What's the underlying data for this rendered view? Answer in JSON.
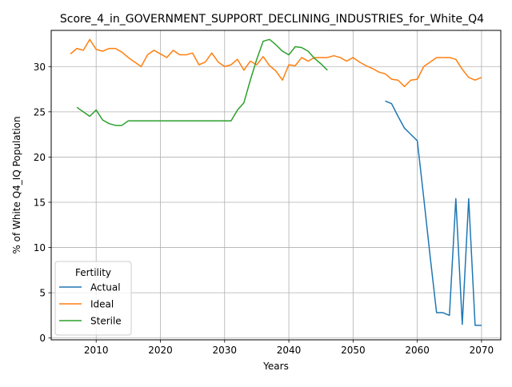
{
  "chart_data": {
    "type": "line",
    "title": "Score_4_in_GOVERNMENT_SUPPORT_DECLINING_INDUSTRIES_for_White_Q4",
    "xlabel": "Years",
    "ylabel": "% of White Q4_IQ Population",
    "xlim": [
      2003,
      2073
    ],
    "ylim": [
      -0.2,
      34.0
    ],
    "xticks": [
      2010,
      2020,
      2030,
      2040,
      2050,
      2060,
      2070
    ],
    "yticks": [
      0,
      5,
      10,
      15,
      20,
      25,
      30
    ],
    "grid": true,
    "legend": {
      "title": "Fertility",
      "placement": "lower-left"
    },
    "series": [
      {
        "name": "Actual",
        "color": "#1f77b4",
        "x": [
          2055,
          2056,
          2057,
          2058,
          2059,
          2060,
          2061,
          2062,
          2063,
          2064,
          2065,
          2066,
          2067,
          2068,
          2069,
          2070
        ],
        "y": [
          26.2,
          25.9,
          24.5,
          23.2,
          22.5,
          21.8,
          15.5,
          9.0,
          2.8,
          2.8,
          2.5,
          15.4,
          1.5,
          15.4,
          1.4,
          1.4
        ]
      },
      {
        "name": "Ideal",
        "color": "#ff7f0e",
        "x": [
          2006,
          2007,
          2008,
          2009,
          2010,
          2011,
          2012,
          2013,
          2014,
          2015,
          2016,
          2017,
          2018,
          2019,
          2020,
          2021,
          2022,
          2023,
          2024,
          2025,
          2026,
          2027,
          2028,
          2029,
          2030,
          2031,
          2032,
          2033,
          2034,
          2035,
          2036,
          2037,
          2038,
          2039,
          2040,
          2041,
          2042,
          2043,
          2044,
          2045,
          2046,
          2047,
          2048,
          2049,
          2050,
          2051,
          2052,
          2053,
          2054,
          2055,
          2056,
          2057,
          2058,
          2059,
          2060,
          2061,
          2062,
          2063,
          2064,
          2065,
          2066,
          2067,
          2068,
          2069,
          2070
        ],
        "y": [
          31.4,
          32.0,
          31.8,
          33.0,
          31.9,
          31.7,
          32.0,
          32.0,
          31.6,
          31.0,
          30.5,
          30.0,
          31.3,
          31.8,
          31.4,
          31.0,
          31.8,
          31.3,
          31.3,
          31.5,
          30.2,
          30.5,
          31.5,
          30.5,
          30.0,
          30.2,
          30.8,
          29.6,
          30.6,
          30.2,
          31.1,
          30.1,
          29.5,
          28.5,
          30.2,
          30.1,
          31.0,
          30.6,
          31.0,
          31.0,
          31.0,
          31.2,
          31.0,
          30.6,
          31.0,
          30.5,
          30.1,
          29.8,
          29.4,
          29.2,
          28.6,
          28.5,
          27.8,
          28.5,
          28.6,
          30.0,
          30.5,
          31.0,
          31.0,
          31.0,
          30.8,
          29.7,
          28.8,
          28.5,
          28.8
        ]
      },
      {
        "name": "Sterile",
        "color": "#2ca02c",
        "x": [
          2007,
          2008,
          2009,
          2010,
          2011,
          2012,
          2013,
          2014,
          2015,
          2016,
          2017,
          2018,
          2019,
          2020,
          2021,
          2022,
          2023,
          2024,
          2025,
          2026,
          2027,
          2028,
          2029,
          2030,
          2031,
          2032,
          2033,
          2034,
          2035,
          2036,
          2037,
          2038,
          2039,
          2040,
          2041,
          2042,
          2043,
          2044,
          2045,
          2046
        ],
        "y": [
          25.5,
          25.0,
          24.5,
          25.2,
          24.1,
          23.7,
          23.5,
          23.5,
          24.0,
          24.0,
          24.0,
          24.0,
          24.0,
          24.0,
          24.0,
          24.0,
          24.0,
          24.0,
          24.0,
          24.0,
          24.0,
          24.0,
          24.0,
          24.0,
          24.0,
          25.2,
          26.0,
          28.5,
          30.8,
          32.8,
          33.0,
          32.4,
          31.7,
          31.3,
          32.2,
          32.1,
          31.7,
          30.9,
          30.3,
          29.6
        ]
      }
    ]
  }
}
